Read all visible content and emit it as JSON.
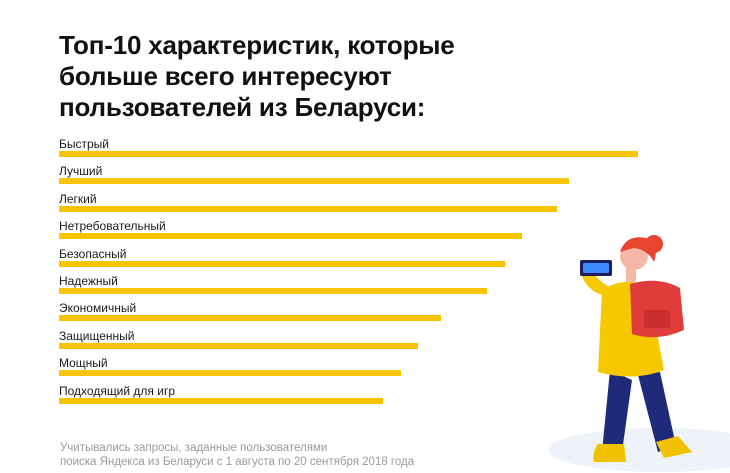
{
  "title_lines": [
    "Топ-10 характеристик, которые",
    "больше всего интересуют",
    "пользователей из Беларуси:"
  ],
  "chart_data": {
    "type": "bar",
    "orientation": "horizontal",
    "title": "Топ-10 характеристик, которые больше всего интересуют пользователей из Беларуси:",
    "categories": [
      "Быстрый",
      "Лучший",
      "Легкий",
      "Нетребовательный",
      "Безопасный",
      "Надежный",
      "Экономичный",
      "Защищенный",
      "Мощный",
      "Подходящий для игр"
    ],
    "values": [
      100,
      88,
      86,
      80,
      77,
      74,
      66,
      62,
      59,
      56
    ],
    "xlim": [
      0,
      100
    ],
    "grid": false,
    "bar_color": "#f6c400"
  },
  "footnote": {
    "line1": "Учитывались запросы, заданные пользователями",
    "line2": "поиска Яндекса из Беларуси с 1 августа по 20 сентября 2018 года"
  },
  "colors": {
    "bar": "#f6c400",
    "title": "#111111",
    "footnote": "#9a9a9a"
  },
  "illustration": {
    "icon": "woman-with-phone-and-backpack-illustration"
  }
}
